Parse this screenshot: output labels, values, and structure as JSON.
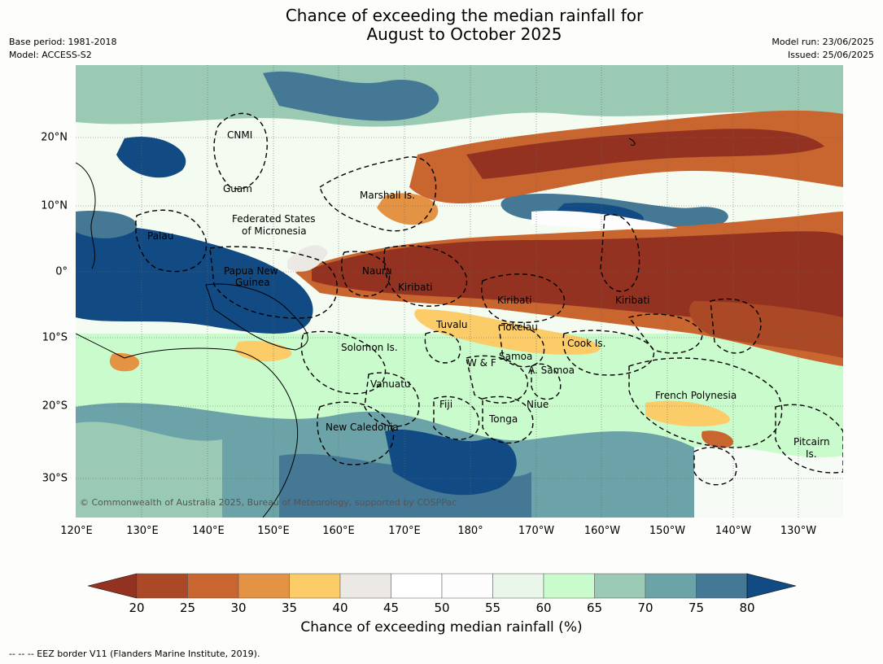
{
  "title": {
    "line1": "Chance of exceeding the median rainfall for",
    "line2": "August to October 2025"
  },
  "meta": {
    "base_period": "Base period: 1981-2018",
    "model": "Model: ACCESS-S2",
    "model_run": "Model run: 23/06/2025",
    "issued": "Issued: 25/06/2025"
  },
  "map": {
    "copyright": "© Commonwealth of Australia 2025, Bureau of Meteorology, supported by COSPPac",
    "lon_ticks": [
      "120°E",
      "130°E",
      "140°E",
      "150°E",
      "160°E",
      "170°E",
      "180°",
      "170°W",
      "160°W",
      "150°W",
      "140°W",
      "130°W"
    ],
    "lat_ticks": [
      "20°N",
      "10°N",
      "0°",
      "10°S",
      "20°S",
      "30°S"
    ],
    "regions": [
      {
        "name": "CNMI"
      },
      {
        "name": "Guam"
      },
      {
        "name": "Marshall Is."
      },
      {
        "name": "Federated States"
      },
      {
        "name": "of Micronesia"
      },
      {
        "name": "Palau"
      },
      {
        "name": "Papua New"
      },
      {
        "name": "Guinea"
      },
      {
        "name": "Nauru"
      },
      {
        "name": "Kiribati"
      },
      {
        "name": "Kiribati"
      },
      {
        "name": "Kiribati"
      },
      {
        "name": "Tuvalu"
      },
      {
        "name": "Tokelau"
      },
      {
        "name": "Cook Is."
      },
      {
        "name": "Solomon Is."
      },
      {
        "name": "W & F"
      },
      {
        "name": "Samoa"
      },
      {
        "name": "A. Samoa"
      },
      {
        "name": "Vanuatu"
      },
      {
        "name": "Fiji"
      },
      {
        "name": "Niue"
      },
      {
        "name": "Tonga"
      },
      {
        "name": "French Polynesia"
      },
      {
        "name": "New Caledonia"
      },
      {
        "name": "Pitcairn"
      },
      {
        "name": "Is."
      }
    ]
  },
  "colorbar": {
    "label": "Chance of exceeding median rainfall (%)",
    "ticks": [
      "20",
      "25",
      "30",
      "35",
      "40",
      "45",
      "50",
      "55",
      "60",
      "65",
      "70",
      "75",
      "80"
    ],
    "colors": [
      "#ab4927",
      "#c9652e",
      "#e39343",
      "#fccc68",
      "#ece9e4",
      "#ffffff",
      "#fdfdfd",
      "#eaf6e9",
      "#cafbcc",
      "#9acab4",
      "#6ba3a8",
      "#447895"
    ],
    "low_ext_color": "#943222",
    "high_ext_color": "#124b83"
  },
  "footnote": "--  --  -- EEZ border V11 (Flanders Marine Institute, 2019)."
}
